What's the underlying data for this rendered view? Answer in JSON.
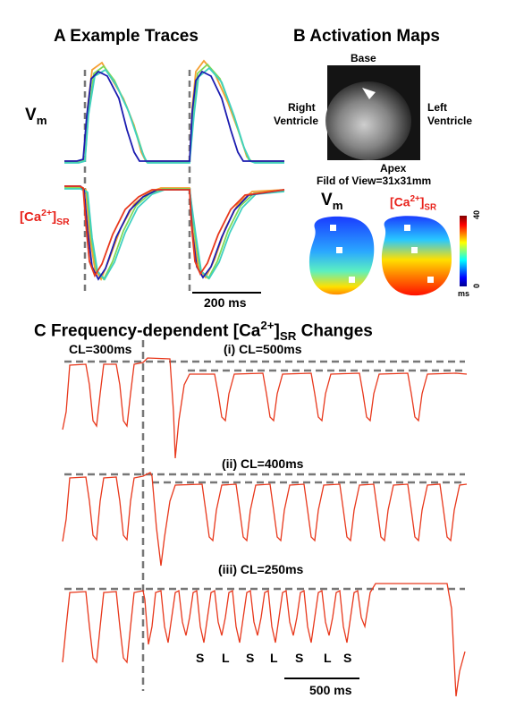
{
  "panelA": {
    "title": "A  Example Traces",
    "vm_label": "V",
    "vm_sub": "m",
    "ca_prefix": "[Ca",
    "ca_sup": "2+",
    "ca_suffix": "]",
    "ca_sub": "SR",
    "scalebar": "200  ms"
  },
  "panelB": {
    "title": "B  Activation Maps",
    "base": "Base",
    "apex": "Apex",
    "right_ventricle_1": "Right",
    "right_ventricle_2": "Ventricle",
    "left_ventricle_1": "Left",
    "left_ventricle_2": "Ventricle",
    "fov": "Fild of View=31x31mm",
    "vm_label": "V",
    "vm_sub": "m",
    "ca_prefix": "[Ca",
    "ca_sup": "2+",
    "ca_suffix": "]",
    "ca_sub": "SR",
    "colorbar_max": "40",
    "colorbar_min": "0",
    "colorbar_unit": "ms"
  },
  "panelC": {
    "title_main": "C  Frequency-dependent [Ca",
    "title_sup": "2+",
    "title_mid": "]",
    "title_sub": "SR",
    "title_end": " Changes",
    "cl300": "CL=300ms",
    "row1": "(i)  CL=500ms",
    "row2": "(ii)  CL=400ms",
    "row3": "(iii)  CL=250ms",
    "sl_labels": [
      "S",
      "L",
      "S",
      "L",
      "S",
      "L",
      "S"
    ],
    "scalebar": "500 ms"
  },
  "colors": {
    "trace_red": "#e8381c",
    "trace_orange": "#f5a033",
    "trace_green": "#7ed957",
    "trace_cyan": "#3fd0c0",
    "trace_blue": "#1c1cb0",
    "dash_gray": "#777777"
  }
}
